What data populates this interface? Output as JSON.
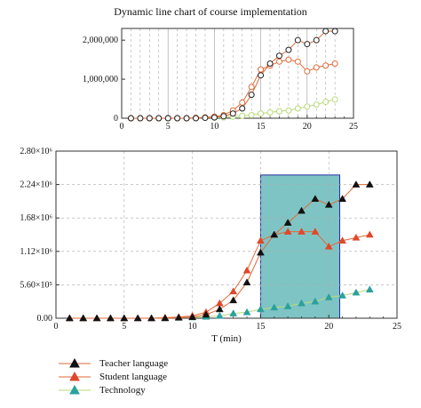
{
  "title": "Dynamic line chart of course implementation",
  "colors": {
    "teacher_line": "#e06a3a",
    "student_line": "#e06a3a",
    "technology_line": "#b9d97a",
    "teacher_marker": "#111111",
    "student_marker": "#e0482a",
    "technology_marker": "#2aa0a0",
    "highlight_fill": "#7fc4c4",
    "highlight_stroke": "#2a2aa0"
  },
  "chart_data": [
    {
      "type": "line",
      "title": "Dynamic line chart of course implementation",
      "xlim": [
        0,
        25
      ],
      "ylim": [
        0,
        2300000
      ],
      "x_ticks": [
        "0",
        "5",
        "10",
        "15",
        "20",
        "25"
      ],
      "y_ticks": [
        "0",
        "1,000,000",
        "2,000,000"
      ],
      "x": [
        1,
        2,
        3,
        4,
        5,
        6,
        7,
        8,
        9,
        10,
        11,
        12,
        13,
        14,
        15,
        16,
        17,
        18,
        19,
        20,
        21,
        22,
        23
      ],
      "series": [
        {
          "name": "Teacher language",
          "values": [
            0,
            0,
            0,
            0,
            0,
            0,
            0,
            0,
            10000,
            20000,
            50000,
            120000,
            250000,
            600000,
            1100000,
            1400000,
            1600000,
            1750000,
            2000000,
            1900000,
            2000000,
            2230000,
            2230000
          ]
        },
        {
          "name": "Student language",
          "values": [
            0,
            0,
            0,
            0,
            0,
            0,
            0,
            10000,
            20000,
            40000,
            80000,
            200000,
            400000,
            800000,
            1250000,
            1350000,
            1450000,
            1500000,
            1450000,
            1200000,
            1300000,
            1350000,
            1400000
          ]
        },
        {
          "name": "Technology",
          "values": [
            0,
            0,
            0,
            0,
            0,
            0,
            0,
            5000,
            10000,
            15000,
            20000,
            40000,
            60000,
            80000,
            120000,
            150000,
            180000,
            200000,
            250000,
            300000,
            350000,
            420000,
            480000
          ]
        }
      ]
    },
    {
      "type": "line",
      "xlabel": "T (min)",
      "xlim": [
        0,
        25
      ],
      "ylim": [
        0,
        2800000
      ],
      "x_ticks": [
        "0",
        "5",
        "10",
        "15",
        "20",
        "25"
      ],
      "y_ticks": [
        "0.00",
        "5.60×10⁵",
        "1.12×10⁶",
        "1.68×10⁶",
        "2.24×10⁶",
        "2.80×10⁶"
      ],
      "highlight_region": {
        "x": [
          15,
          20.8
        ],
        "y": [
          0,
          2400000
        ]
      },
      "x": [
        1,
        2,
        3,
        4,
        5,
        6,
        7,
        8,
        9,
        10,
        11,
        12,
        13,
        14,
        15,
        16,
        17,
        18,
        19,
        20,
        21,
        22,
        23
      ],
      "series": [
        {
          "name": "Teacher language",
          "values": [
            0,
            0,
            0,
            0,
            0,
            0,
            0,
            0,
            10000,
            20000,
            60000,
            150000,
            300000,
            600000,
            1100000,
            1400000,
            1600000,
            1800000,
            2000000,
            1900000,
            2000000,
            2240000,
            2240000
          ]
        },
        {
          "name": "Student language",
          "values": [
            0,
            0,
            0,
            0,
            0,
            0,
            0,
            10000,
            20000,
            40000,
            100000,
            250000,
            450000,
            800000,
            1300000,
            1400000,
            1450000,
            1450000,
            1450000,
            1200000,
            1300000,
            1350000,
            1400000
          ]
        },
        {
          "name": "Technology",
          "values": [
            0,
            0,
            0,
            0,
            0,
            0,
            0,
            5000,
            10000,
            15000,
            25000,
            40000,
            80000,
            100000,
            150000,
            180000,
            200000,
            250000,
            280000,
            350000,
            380000,
            430000,
            480000
          ]
        }
      ],
      "legend": [
        "Teacher language",
        "Student language",
        "Technology"
      ]
    }
  ]
}
